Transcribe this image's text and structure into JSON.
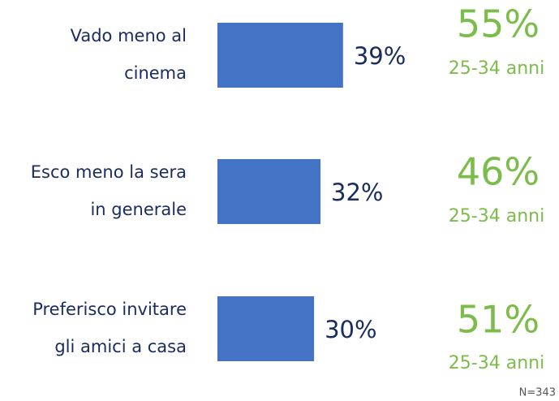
{
  "chart_data": {
    "type": "bar",
    "orientation": "horizontal",
    "categories": [
      [
        "Vado meno al",
        "cinema"
      ],
      [
        "Esco meno la sera",
        "in generale"
      ],
      [
        "Preferisco invitare",
        "gli amici a casa"
      ]
    ],
    "values": [
      39,
      32,
      30
    ],
    "value_labels": [
      "39%",
      "32%",
      "30%"
    ],
    "color": "#4472c4",
    "xlim": [
      0,
      100
    ],
    "highlights": [
      {
        "value": 55,
        "label": "55%",
        "group": "25-34 anni"
      },
      {
        "value": 46,
        "label": "46%",
        "group": "25-34 anni"
      },
      {
        "value": 51,
        "label": "51%",
        "group": "25-34 anni"
      }
    ],
    "highlight_color": "#7cbc4a",
    "note": "N=343"
  }
}
